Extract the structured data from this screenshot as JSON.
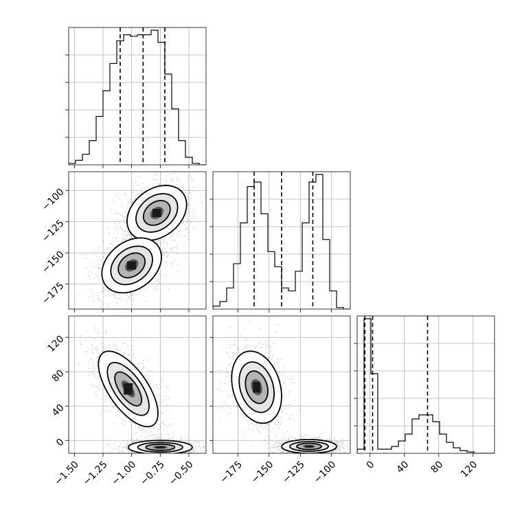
{
  "chart_data": {
    "type": "corner",
    "grid": true,
    "parameters": [
      {
        "label": "",
        "range": [
          -1.55,
          -0.35
        ],
        "ticks": [
          -1.5,
          -1.25,
          -1.0,
          -0.75,
          -0.5
        ],
        "tick_labels": [
          "−1.50",
          "−1.25",
          "−1.00",
          "−0.75",
          "−0.50"
        ],
        "quantiles": [
          -1.1,
          -0.9,
          -0.71
        ],
        "histogram": {
          "bin_edges": [
            -1.55,
            -1.49,
            -1.43,
            -1.37,
            -1.31,
            -1.25,
            -1.19,
            -1.13,
            -1.07,
            -1.01,
            -0.95,
            -0.89,
            -0.83,
            -0.77,
            -0.71,
            -0.65,
            -0.59,
            -0.53,
            -0.47,
            -0.41,
            -0.35
          ],
          "counts": [
            0.01,
            0.03,
            0.07,
            0.16,
            0.32,
            0.49,
            0.67,
            0.82,
            0.86,
            0.85,
            0.86,
            0.86,
            0.89,
            0.81,
            0.6,
            0.37,
            0.16,
            0.05,
            0.01,
            0.0
          ]
        }
      },
      {
        "label": "",
        "range": [
          -195,
          -85
        ],
        "ticks": [
          -175,
          -150,
          -125,
          -100
        ],
        "tick_labels": [
          "−175",
          "−150",
          "−125",
          "−100"
        ],
        "quantiles": [
          -162,
          -140,
          -115
        ],
        "histogram": {
          "bin_edges": [
            -195,
            -189.5,
            -184,
            -178.5,
            -173,
            -167.5,
            -162,
            -156.5,
            -151,
            -145.5,
            -140,
            -134.5,
            -129,
            -123.5,
            -118,
            -112.5,
            -107,
            -101.5,
            -96,
            -90.5,
            -85
          ],
          "counts": [
            0.02,
            0.05,
            0.14,
            0.3,
            0.57,
            0.81,
            0.84,
            0.63,
            0.38,
            0.28,
            0.14,
            0.12,
            0.25,
            0.57,
            0.84,
            0.89,
            0.46,
            0.12,
            0.01,
            0.0
          ]
        }
      },
      {
        "label": "",
        "range": [
          -15,
          145
        ],
        "ticks": [
          0,
          40,
          80,
          120
        ],
        "tick_labels": [
          "0",
          "40",
          "80",
          "120"
        ],
        "quantiles": [
          -6,
          3,
          67
        ],
        "histogram": {
          "bin_edges": [
            -15,
            -7,
            1,
            9,
            17,
            25,
            33,
            41,
            49,
            57,
            65,
            73,
            81,
            89,
            97,
            105,
            113,
            121,
            129,
            137,
            145
          ],
          "counts": [
            0.03,
            0.98,
            0.58,
            0.03,
            0.03,
            0.05,
            0.09,
            0.14,
            0.25,
            0.28,
            0.28,
            0.23,
            0.14,
            0.08,
            0.04,
            0.02,
            0.01,
            0.0,
            0.0,
            0.0
          ]
        }
      }
    ],
    "pairs": [
      {
        "x_param": 0,
        "y_param": 1,
        "modes": [
          {
            "mean": [
              -0.78,
              -118
            ],
            "sigma": [
              0.13,
              11
            ],
            "rho": 0.3,
            "weight": 0.5
          },
          {
            "mean": [
              -1.0,
              -160
            ],
            "sigma": [
              0.13,
              11
            ],
            "rho": 0.3,
            "weight": 0.5
          }
        ]
      },
      {
        "x_param": 0,
        "y_param": 2,
        "modes": [
          {
            "mean": [
              -1.03,
              60
            ],
            "sigma": [
              0.13,
              22
            ],
            "rho": -0.65,
            "weight": 0.5
          },
          {
            "mean": [
              -0.75,
              -8
            ],
            "sigma": [
              0.14,
              4
            ],
            "rho": 0.0,
            "weight": 0.5
          }
        ]
      },
      {
        "x_param": 1,
        "y_param": 2,
        "modes": [
          {
            "mean": [
              -160,
              62
            ],
            "sigma": [
              10,
              21
            ],
            "rho": -0.25,
            "weight": 0.5
          },
          {
            "mean": [
              -118,
              -7
            ],
            "sigma": [
              11,
              4
            ],
            "rho": 0.0,
            "weight": 0.5
          }
        ]
      }
    ]
  }
}
